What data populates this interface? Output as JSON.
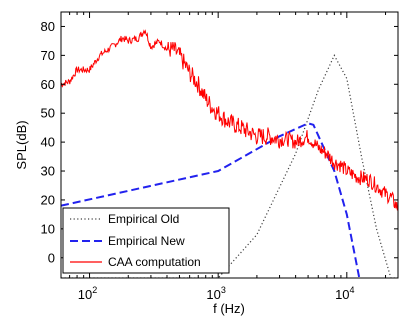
{
  "chart_data": {
    "type": "line",
    "title": "",
    "xlabel": "f (Hz)",
    "ylabel": "SPL(dB)",
    "xscale": "log",
    "xlim": [
      60,
      25000
    ],
    "ylim": [
      -7,
      85
    ],
    "grid": false,
    "legend_position": "bottom-left",
    "x_ticks": [
      {
        "value": 100,
        "base": "10",
        "exp": "2"
      },
      {
        "value": 1000,
        "base": "10",
        "exp": "3"
      },
      {
        "value": 10000,
        "base": "10",
        "exp": "4"
      }
    ],
    "y_ticks": [
      0,
      10,
      20,
      30,
      40,
      50,
      60,
      70,
      80
    ],
    "y_tick_labels": [
      "0",
      "10",
      "20",
      "30",
      "40",
      "50",
      "60",
      "70",
      "80"
    ],
    "series": [
      {
        "name": "Empirical Old",
        "color": "#404040",
        "style": "dotted",
        "x": [
          60,
          1000,
          2000,
          4000,
          6000,
          8000,
          10000,
          13000,
          17000,
          22000,
          25000
        ],
        "y": [
          -7,
          -7,
          8,
          36,
          58,
          70,
          62,
          35,
          10,
          -7,
          -7
        ]
      },
      {
        "name": "Empirical New",
        "color": "#2222ee",
        "style": "dashed",
        "x": [
          60,
          1000,
          3000,
          5000,
          5500,
          8000,
          10000,
          12500
        ],
        "y": [
          18,
          30,
          42,
          46.5,
          46,
          30,
          15,
          -7
        ]
      },
      {
        "name": "CAA computation",
        "color": "#ff0000",
        "style": "solid",
        "x": [
          60,
          70,
          80,
          100,
          120,
          150,
          180,
          200,
          240,
          270,
          300,
          350,
          400,
          450,
          500,
          600,
          700,
          800,
          900,
          1000,
          1200,
          1500,
          2000,
          2500,
          3000,
          3500,
          4000,
          4500,
          5000,
          6000,
          7000,
          8000,
          9000,
          10000,
          12000,
          15000,
          18000,
          20000,
          22000,
          25000
        ],
        "y": [
          60,
          61,
          65,
          65,
          70,
          73,
          76,
          75,
          76,
          79,
          73,
          75,
          72,
          72,
          70,
          64,
          60,
          55,
          52,
          50,
          47,
          45,
          42,
          42,
          41,
          41,
          40,
          41,
          42,
          38,
          36,
          33,
          32,
          30,
          28,
          27,
          24,
          22,
          21,
          17
        ]
      }
    ]
  }
}
